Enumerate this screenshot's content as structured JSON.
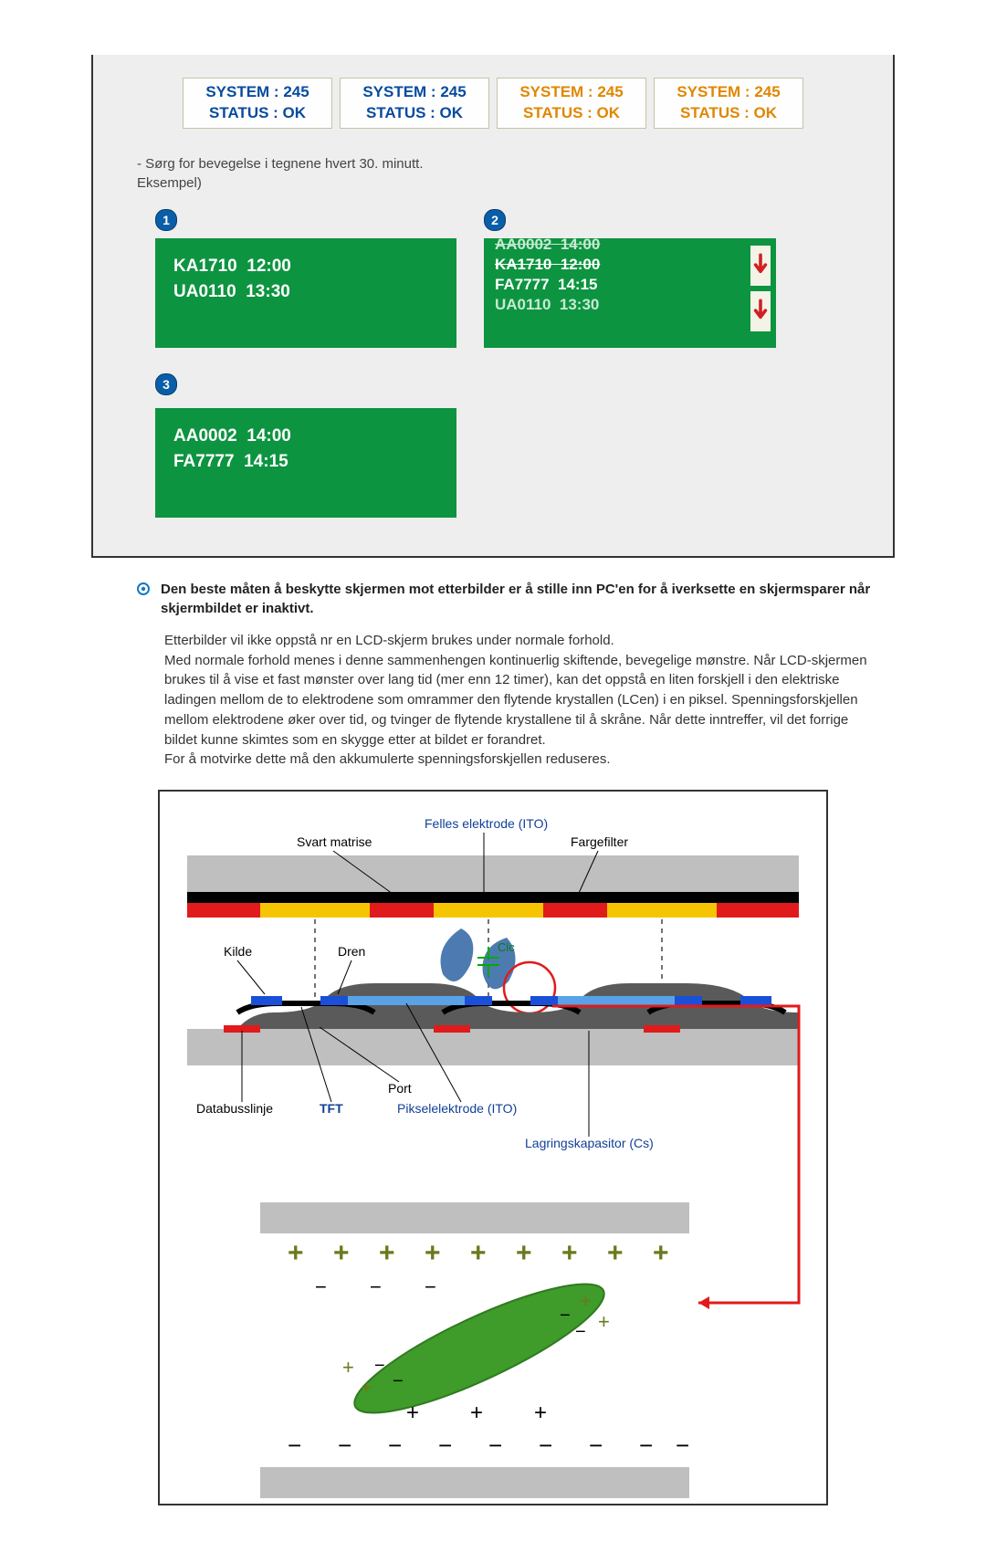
{
  "system_row": {
    "cells": [
      {
        "line1": "SYSTEM : 245",
        "line2": "STATUS : OK",
        "style": "blue"
      },
      {
        "line1": "SYSTEM : 245",
        "line2": "STATUS : OK",
        "style": "blue"
      },
      {
        "line1": "SYSTEM : 245",
        "line2": "STATUS : OK",
        "style": "orange"
      },
      {
        "line1": "SYSTEM : 245",
        "line2": "STATUS : OK",
        "style": "orange"
      }
    ]
  },
  "instruction": {
    "line1": "- Sørg for bevegelse i tegnene hvert 30. minutt.",
    "line2": "Eksempel)"
  },
  "panel1": {
    "badge": "1",
    "lines": [
      {
        "code": "KA1710",
        "time": "12:00"
      },
      {
        "code": "UA0110",
        "time": "13:30"
      }
    ]
  },
  "panel2": {
    "badge": "2",
    "lines": [
      {
        "code": "AA0002",
        "time": "14:00",
        "faded": true
      },
      {
        "code": "KA1710",
        "time": "12:00",
        "faded": false
      },
      {
        "code": "FA7777",
        "time": "14:15",
        "faded": false
      },
      {
        "code": "UA0110",
        "time": "13:30",
        "faded": true
      }
    ],
    "arrow_color": "#d22020"
  },
  "panel3": {
    "badge": "3",
    "lines": [
      {
        "code": "AA0002",
        "time": "14:00"
      },
      {
        "code": "FA7777",
        "time": "14:15"
      }
    ]
  },
  "colors": {
    "panel_green": "#0d9440",
    "badge_blue": "#0a5ea8",
    "sys_blue": "#084b9e",
    "sys_orange": "#e08700"
  },
  "heading": "Den beste måten å beskytte skjermen mot etterbilder er å stille inn PC'en for å iverksette en skjermsparer når skjermbildet er inaktivt.",
  "body_text": "Etterbilder vil ikke oppstå nr en LCD-skjerm brukes under normale forhold.\nMed normale forhold menes i denne sammenhengen kontinuerlig skiftende, bevegelige mønstre. Når LCD-skjermen brukes til å vise et fast mønster over lang tid (mer enn 12 timer), kan det oppstå en liten forskjell i den elektriske ladingen mellom de to elektrodene som omrammer den flytende krystallen (LCen) i en piksel. Spenningsforskjellen mellom elektrodene øker over tid, og tvinger de flytende krystallene til å skråne. Når dette inntreffer, vil det forrige bildet kunne skimtes som en skygge etter at bildet er forandret.\nFor å motvirke dette må den akkumulerte spenningsforskjellen reduseres.",
  "diagram": {
    "labels": {
      "common_electrode": "Felles elektrode (ITO)",
      "black_matrix": "Svart matrise",
      "color_filter": "Fargefilter",
      "source": "Kilde",
      "drain": "Dren",
      "clc": "Clc",
      "gate": "Port",
      "databus": "Databusslinje",
      "tft": "TFT",
      "pixel_electrode": "Pikselelektrode (ITO)",
      "storage_cap": "Lagringskapasitor (Cs)"
    },
    "colors": {
      "red": "#e11b1b",
      "yellow": "#f6c400",
      "black": "#000000",
      "gray": "#bfbfbf",
      "dark_gray": "#5a5a5a",
      "blue": "#1a4fd8",
      "light_blue": "#5aa2e8",
      "bg": "#ffffff",
      "label_blue": "#123f98",
      "olive": "#6a7a1c",
      "crystal_green": "#3f9b2a"
    }
  }
}
